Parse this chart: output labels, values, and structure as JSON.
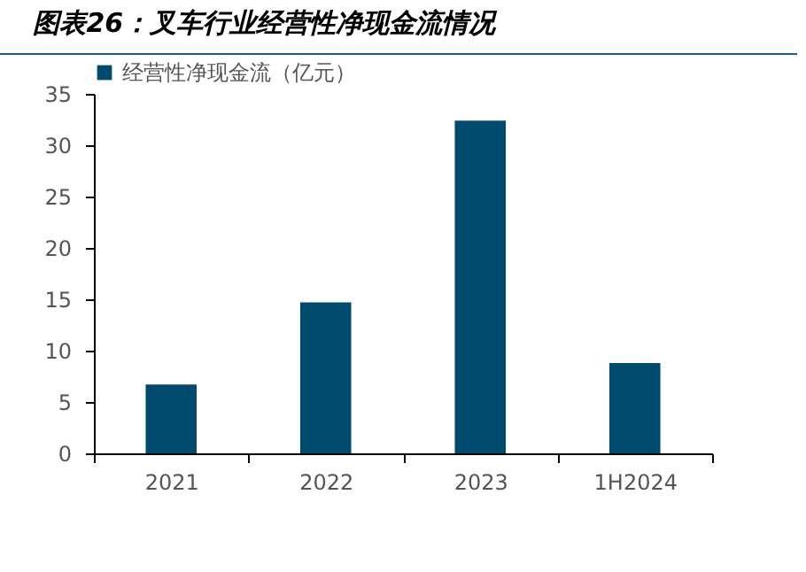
{
  "chart_data": {
    "type": "bar",
    "title": "图表26：叉车行业经营性净现金流情况",
    "categories": [
      "2021",
      "2022",
      "2023",
      "1H2024"
    ],
    "series": [
      {
        "name": "经营性净现金流（亿元）",
        "color": "#004a6e",
        "values": [
          6.7,
          14.7,
          32.4,
          8.8
        ]
      }
    ],
    "ylim": [
      0,
      35
    ],
    "yticks": [
      0,
      5,
      10,
      15,
      20,
      25,
      30,
      35
    ],
    "grid": false,
    "legend": "top"
  }
}
